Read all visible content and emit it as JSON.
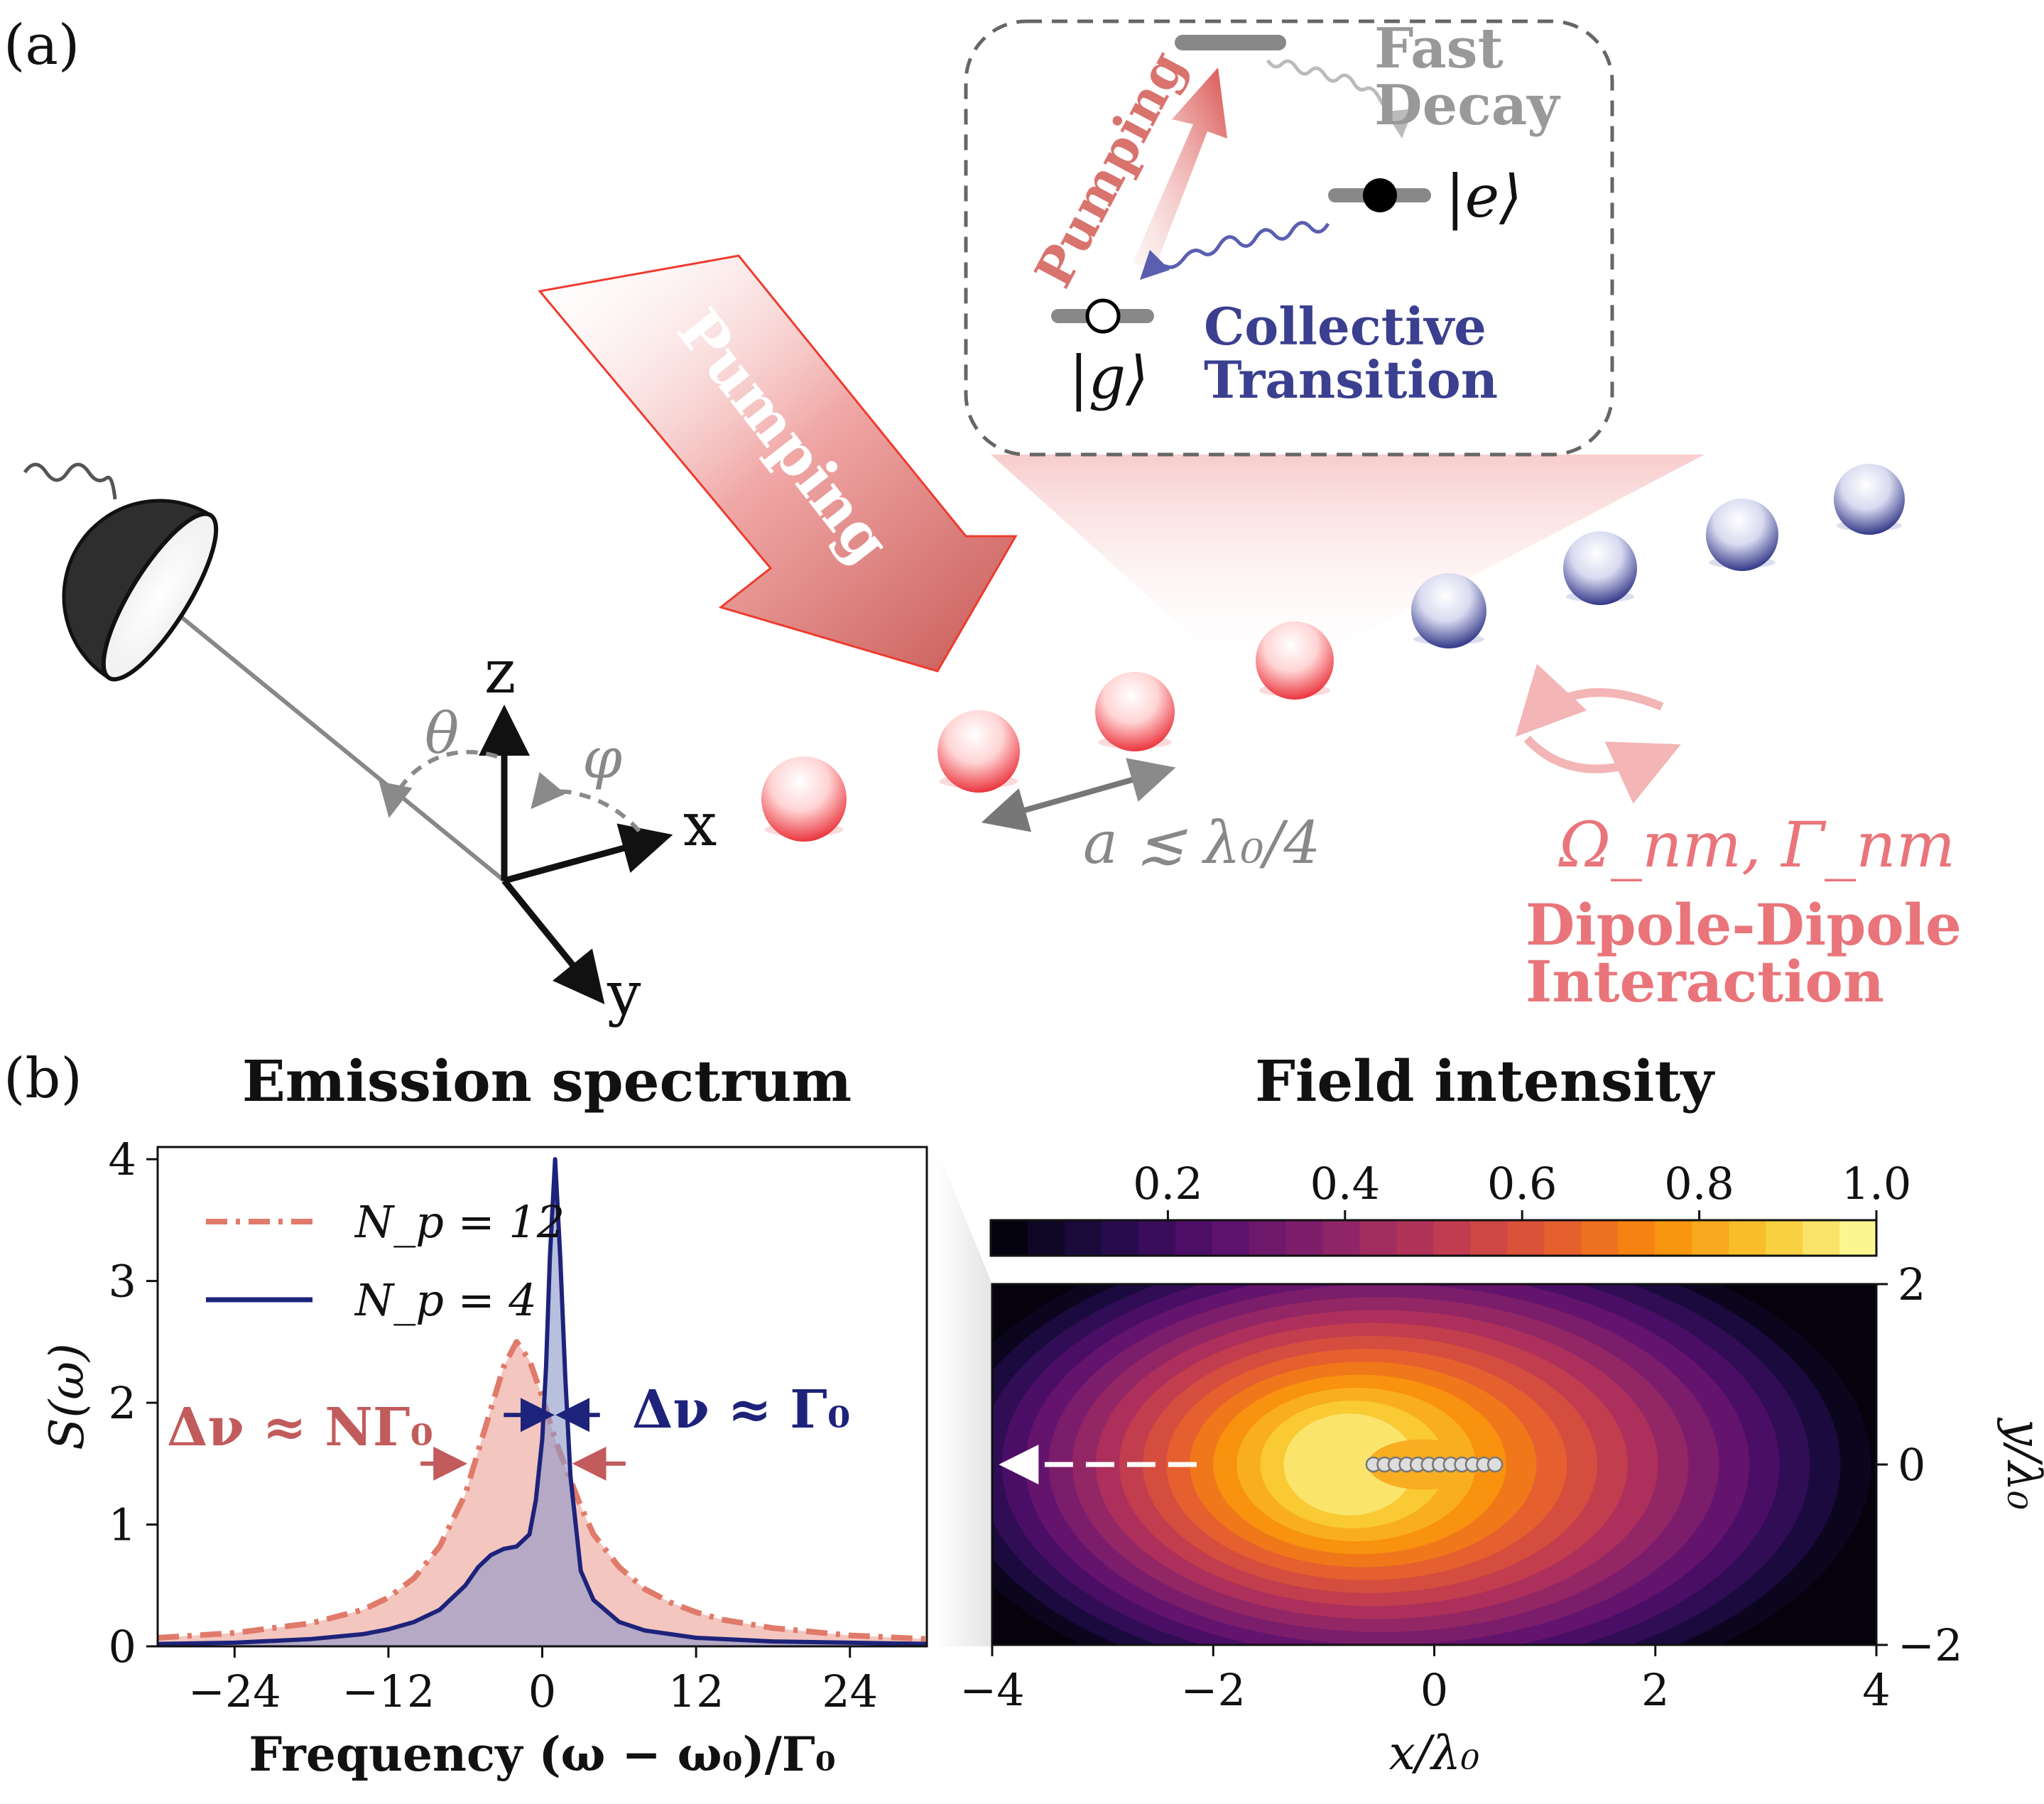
{
  "panel_a": {
    "label": "(a)",
    "pump_text": "Pumping",
    "inset": {
      "pumping_label": "Pumping",
      "fast_decay_line1": "Fast",
      "fast_decay_line2": "Decay",
      "excited_state": "|e⟩",
      "ground_state": "|g⟩",
      "collective_line1": "Collective",
      "collective_line2": "Transition"
    },
    "axes": {
      "z": "z",
      "x": "x",
      "y": "y",
      "theta": "θ",
      "phi": "φ"
    },
    "spacing_label": "a ≲ λ₀/4",
    "coupling_label": "Ω_nm, Γ_nm",
    "dipole_line1": "Dipole-Dipole",
    "dipole_line2": "Interaction",
    "colors": {
      "excited_atom": "#e8202a",
      "ground_atom": "#1d237a",
      "pump": "#d9534f",
      "dipole": "#e9757a",
      "collective": "#3b3f8f",
      "gray": "#8a8a8a"
    }
  },
  "panel_b": {
    "label": "(b)"
  },
  "chart_data": [
    {
      "type": "area",
      "title": "Emission spectrum",
      "xlabel": "Frequency (ω − ω₀)/Γ₀",
      "ylabel": "S(ω)",
      "xlim": [
        -30,
        30
      ],
      "ylim": [
        0,
        4.1
      ],
      "xticks": [
        -24,
        -12,
        0,
        12,
        24
      ],
      "xtick_labels": [
        "−24",
        "−12",
        "0",
        "12",
        "24"
      ],
      "yticks": [
        0,
        1,
        2,
        3,
        4
      ],
      "ytick_labels": [
        "0",
        "1",
        "2",
        "3",
        "4"
      ],
      "legend_position": "top-left",
      "series": [
        {
          "name": "N_p = 12",
          "legend_label": "N_p = 12",
          "style": "dash-dot",
          "color": "#e07a6a",
          "fill": "#f0b3ab",
          "x": [
            -30,
            -24,
            -18,
            -14,
            -12,
            -10,
            -8,
            -6,
            -4,
            -3,
            -2,
            -1,
            0,
            1,
            2,
            3,
            4,
            6,
            8,
            10,
            12,
            14,
            18,
            24,
            30
          ],
          "y": [
            0.07,
            0.11,
            0.19,
            0.3,
            0.4,
            0.56,
            0.82,
            1.25,
            1.95,
            2.3,
            2.5,
            2.35,
            2.05,
            1.7,
            1.42,
            1.15,
            0.92,
            0.65,
            0.47,
            0.36,
            0.28,
            0.22,
            0.15,
            0.09,
            0.06
          ]
        },
        {
          "name": "N_p = 4",
          "legend_label": "N_p = 4",
          "style": "solid",
          "color": "#1d237a",
          "fill": "#8a96c8",
          "x": [
            -30,
            -24,
            -18,
            -14,
            -12,
            -10,
            -8,
            -6,
            -5,
            -4,
            -3,
            -2,
            -1,
            -0.5,
            0,
            0.3,
            0.6,
            1,
            1.4,
            1.8,
            2.2,
            3,
            4,
            6,
            8,
            12,
            18,
            24,
            30
          ],
          "y": [
            0.02,
            0.03,
            0.06,
            0.1,
            0.14,
            0.2,
            0.3,
            0.5,
            0.65,
            0.75,
            0.8,
            0.82,
            0.92,
            1.2,
            1.7,
            2.3,
            3.2,
            4.0,
            3.2,
            2.2,
            1.4,
            0.62,
            0.38,
            0.2,
            0.13,
            0.07,
            0.04,
            0.03,
            0.02
          ]
        }
      ],
      "annotations": [
        {
          "text": "Δν ≈ NΓ₀",
          "color": "#c25b5b"
        },
        {
          "text": "Δν ≈ Γ₀",
          "color": "#1d237a"
        }
      ]
    },
    {
      "type": "heatmap",
      "title": "Field intensity",
      "xlabel": "x/λ₀",
      "ylabel": "y/λ₀",
      "xlim": [
        -4,
        4
      ],
      "ylim": [
        -2,
        2
      ],
      "xticks": [
        -4,
        -2,
        0,
        2,
        4
      ],
      "xtick_labels": [
        "−4",
        "−2",
        "0",
        "2",
        "4"
      ],
      "yticks": [
        2,
        0,
        -2
      ],
      "ytick_labels": [
        "2",
        "0",
        "−2"
      ],
      "colorbar": {
        "position": "top",
        "range": [
          0,
          1
        ],
        "ticks": [
          0.2,
          0.4,
          0.6,
          0.8,
          1.0
        ],
        "tick_labels": [
          "0.2",
          "0.4",
          "0.6",
          "0.8",
          "1.0"
        ]
      },
      "colormap": "inferno",
      "peak_at": {
        "x": -0.8,
        "y": 0
      },
      "atoms_x": [
        -0.55,
        -0.45,
        -0.35,
        -0.25,
        -0.15,
        -0.05,
        0.05,
        0.15,
        0.25,
        0.35,
        0.45,
        0.55
      ],
      "emission_direction": "-x"
    }
  ]
}
